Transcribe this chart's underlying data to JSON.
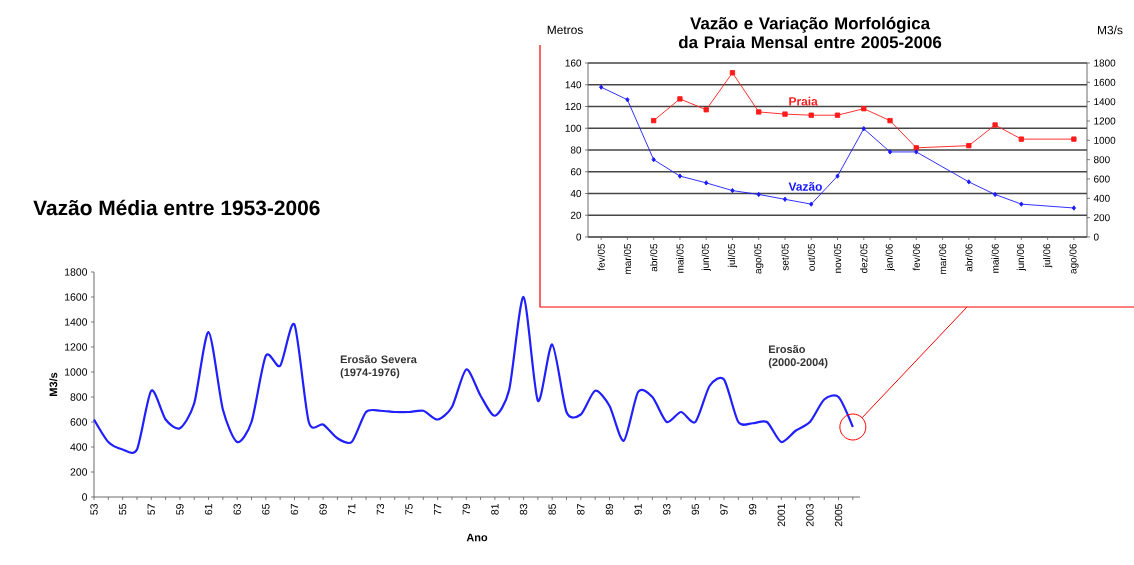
{
  "chart_data": [
    {
      "type": "line",
      "title": "Vazão Média entre 1953-2006",
      "xlabel": "Ano",
      "ylabel": "M3/s",
      "marker": "none",
      "x": [
        1953,
        1954,
        1955,
        1956,
        1957,
        1958,
        1959,
        1960,
        1961,
        1962,
        1963,
        1964,
        1965,
        1966,
        1967,
        1968,
        1969,
        1970,
        1971,
        1972,
        1973,
        1974,
        1975,
        1976,
        1977,
        1978,
        1979,
        1980,
        1981,
        1982,
        1983,
        1984,
        1985,
        1986,
        1987,
        1988,
        1989,
        1990,
        1991,
        1992,
        1993,
        1994,
        1995,
        1996,
        1997,
        1998,
        1999,
        2000,
        2001,
        2002,
        2003,
        2004,
        2005,
        2006
      ],
      "series": [
        {
          "color": "#1f1fff",
          "values": [
            620,
            440,
            380,
            380,
            850,
            620,
            550,
            750,
            1320,
            700,
            440,
            600,
            1130,
            1050,
            1380,
            600,
            580,
            470,
            440,
            680,
            690,
            680,
            680,
            690,
            620,
            720,
            1020,
            810,
            650,
            860,
            1600,
            770,
            1220,
            680,
            660,
            850,
            730,
            450,
            840,
            800,
            600,
            680,
            600,
            890,
            940,
            600,
            590,
            600,
            440,
            530,
            600,
            780,
            800,
            560
          ]
        }
      ],
      "xlim": [
        1953,
        2006.5
      ],
      "ylim": [
        0,
        1800
      ],
      "yticks": [
        0,
        200,
        400,
        600,
        800,
        1000,
        1200,
        1400,
        1600,
        1800
      ],
      "xticks": [
        {
          "value": 1953,
          "label": "53"
        },
        {
          "value": 1954,
          "label": null
        },
        {
          "value": 1955,
          "label": "55"
        },
        {
          "value": 1956,
          "label": null
        },
        {
          "value": 1957,
          "label": "57"
        },
        {
          "value": 1958,
          "label": null
        },
        {
          "value": 1959,
          "label": "59"
        },
        {
          "value": 1960,
          "label": null
        },
        {
          "value": 1961,
          "label": "61"
        },
        {
          "value": 1962,
          "label": null
        },
        {
          "value": 1963,
          "label": "63"
        },
        {
          "value": 1964,
          "label": null
        },
        {
          "value": 1965,
          "label": "65"
        },
        {
          "value": 1966,
          "label": null
        },
        {
          "value": 1967,
          "label": "67"
        },
        {
          "value": 1968,
          "label": null
        },
        {
          "value": 1969,
          "label": "69"
        },
        {
          "value": 1970,
          "label": null
        },
        {
          "value": 1971,
          "label": "71"
        },
        {
          "value": 1972,
          "label": null
        },
        {
          "value": 1973,
          "label": "73"
        },
        {
          "value": 1974,
          "label": null
        },
        {
          "value": 1975,
          "label": "75"
        },
        {
          "value": 1976,
          "label": null
        },
        {
          "value": 1977,
          "label": "77"
        },
        {
          "value": 1978,
          "label": null
        },
        {
          "value": 1979,
          "label": "79"
        },
        {
          "value": 1980,
          "label": null
        },
        {
          "value": 1981,
          "label": "81"
        },
        {
          "value": 1982,
          "label": null
        },
        {
          "value": 1983,
          "label": "83"
        },
        {
          "value": 1984,
          "label": null
        },
        {
          "value": 1985,
          "label": "85"
        },
        {
          "value": 1986,
          "label": null
        },
        {
          "value": 1987,
          "label": "87"
        },
        {
          "value": 1988,
          "label": null
        },
        {
          "value": 1989,
          "label": "89"
        },
        {
          "value": 1990,
          "label": null
        },
        {
          "value": 1991,
          "label": "91"
        },
        {
          "value": 1992,
          "label": null
        },
        {
          "value": 1993,
          "label": "93"
        },
        {
          "value": 1994,
          "label": null
        },
        {
          "value": 1995,
          "label": "95"
        },
        {
          "value": 1996,
          "label": null
        },
        {
          "value": 1997,
          "label": "97"
        },
        {
          "value": 1998,
          "label": null
        },
        {
          "value": 1999,
          "label": "99"
        },
        {
          "value": 2000,
          "label": null
        },
        2001,
        {
          "value": 2002,
          "label": null
        },
        2003,
        {
          "value": 2004,
          "label": null
        },
        2005,
        {
          "value": 2006,
          "label": null
        }
      ],
      "annotations": [
        "Erosão Severa (1974-1976)",
        "Erosão (2000-2004)"
      ]
    },
    {
      "type": "line",
      "title": "Vazão e Variação Morfológica da Praia Mensal entre 2005-2006",
      "ylabel": "Metros",
      "y2label": "M3/s",
      "grid": "y",
      "categories": [
        "fev/05",
        "mar/05",
        "abr/05",
        "mai/05",
        "jun/05",
        "jul/05",
        "ago/05",
        "set/05",
        "out/05",
        "nov/05",
        "dez/05",
        "jan/06",
        "fev/06",
        "mar/06",
        "abr/06",
        "mai/06",
        "jun/06",
        "jul/06",
        "ago/06"
      ],
      "series": [
        {
          "name": "Praia",
          "color": "#ff1a1a",
          "marker": "square",
          "values": [
            null,
            null,
            107,
            127,
            117,
            151,
            115,
            113,
            112,
            112,
            118,
            107,
            82,
            null,
            84,
            103,
            90,
            null,
            90
          ]
        },
        {
          "name": "Vazão",
          "color": "#1a1aff",
          "marker": "diamond",
          "axis": "y2",
          "values": [
            1550,
            1420,
            800,
            630,
            560,
            480,
            440,
            390,
            340,
            630,
            1120,
            880,
            880,
            null,
            570,
            440,
            340,
            null,
            300
          ]
        }
      ],
      "ylim": [
        0,
        160
      ],
      "yticks": [
        0,
        20,
        40,
        60,
        80,
        100,
        120,
        140,
        160
      ],
      "y2lim": [
        0,
        1800
      ],
      "y2ticks": [
        0,
        200,
        400,
        600,
        800,
        1000,
        1200,
        1400,
        1600,
        1800
      ]
    }
  ]
}
